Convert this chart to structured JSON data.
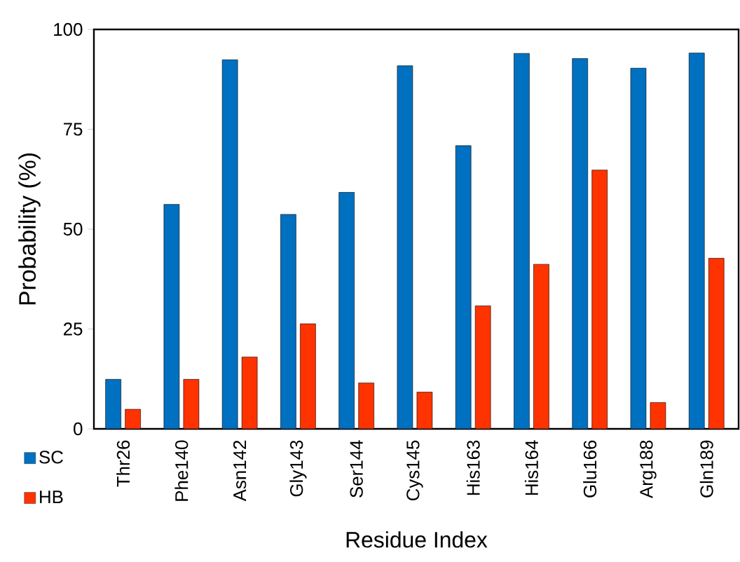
{
  "chart_data": {
    "type": "bar",
    "xlabel": "Residue Index",
    "ylabel": "Probability (%)",
    "categories": [
      "Thr26",
      "Phe140",
      "Asn142",
      "Gly143",
      "Ser144",
      "Cys145",
      "His163",
      "His164",
      "Glu166",
      "Arg188",
      "Gln189"
    ],
    "series": [
      {
        "name": "SC",
        "color": "#0070c0",
        "values": [
          12.4,
          56.2,
          92.4,
          53.7,
          59.2,
          90.9,
          70.9,
          94.0,
          92.7,
          90.3,
          94.1
        ]
      },
      {
        "name": "HB",
        "color": "#ff3300",
        "values": [
          4.9,
          12.4,
          18.0,
          26.3,
          11.5,
          9.2,
          30.8,
          41.2,
          64.8,
          6.6,
          42.7
        ]
      }
    ],
    "ylim": [
      0,
      100
    ],
    "yticks": [
      0,
      25,
      50,
      75,
      100
    ],
    "grid": false,
    "legend": "bottom left"
  }
}
